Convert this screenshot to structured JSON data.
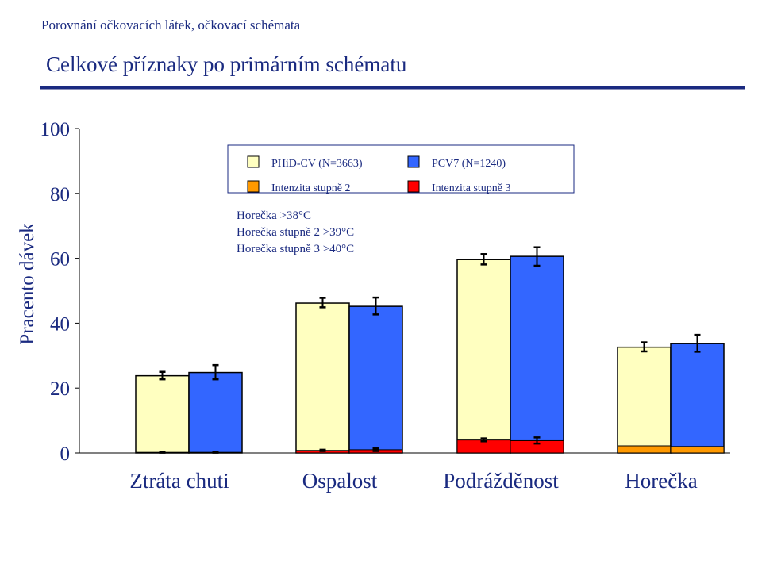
{
  "header": {
    "subtitle": "Porovnání očkovacích látek, očkovací schémata",
    "title": "Celkové příznaky po primárním schématu"
  },
  "chart_data": {
    "type": "bar",
    "ylabel": "Pracento dávek",
    "ylim": [
      0,
      100
    ],
    "yticks": [
      "0",
      "20",
      "40",
      "60",
      "80",
      "100"
    ],
    "categories": [
      "Ztráta chuti",
      "Ospalost",
      "Podrážděnost",
      "Horečka"
    ],
    "legend": {
      "placement": "top-center",
      "entries": [
        {
          "label": "PHiD-CV (N=3663)",
          "color": "#ffffc0"
        },
        {
          "label": "PCV7 (N=1240)",
          "color": "#3366ff"
        },
        {
          "label": "Intenzita stupně 2",
          "color": "#ff9900"
        },
        {
          "label": "Intenzita stupně 3",
          "color": "#ff0000"
        }
      ],
      "notes": [
        "Horečka >38°C",
        "Horečka stupně 2 >39°C",
        "Horečka stupně 3 >40°C"
      ]
    },
    "series": [
      {
        "name": "PHiD-CV (N=3663)",
        "color": "#ffffc0",
        "values": [
          23.8,
          46.2,
          59.6,
          32.6
        ],
        "ci_low": [
          22.7,
          44.9,
          58.1,
          31.3
        ],
        "ci_high": [
          25.0,
          47.8,
          61.3,
          34.1
        ],
        "grade2": [
          0,
          0,
          0,
          2.2
        ],
        "grade3": [
          0.2,
          0.8,
          4.0,
          0
        ],
        "grade3_ci": [
          [
            0.1,
            0.3
          ],
          [
            0.6,
            1.0
          ],
          [
            3.6,
            4.5
          ],
          null
        ]
      },
      {
        "name": "PCV7 (N=1240)",
        "color": "#3366ff",
        "values": [
          24.8,
          45.2,
          60.6,
          33.7
        ],
        "ci_low": [
          22.7,
          42.7,
          57.7,
          31.2
        ],
        "ci_high": [
          27.1,
          47.9,
          63.4,
          36.4
        ],
        "grade2": [
          0,
          0,
          0,
          2.0
        ],
        "grade3": [
          0.2,
          1.0,
          3.8,
          0
        ],
        "grade3_ci": [
          [
            0.1,
            0.4
          ],
          [
            0.6,
            1.4
          ],
          [
            2.9,
            4.8
          ],
          null
        ]
      }
    ],
    "colors": {
      "grade2": "#ff9900",
      "grade3": "#ff0000",
      "text": "#1a2a80",
      "axis": "#000000"
    }
  }
}
